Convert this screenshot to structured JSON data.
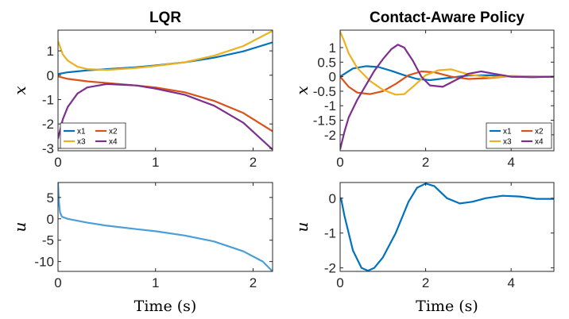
{
  "chart_data": [
    {
      "type": "line",
      "title": "LQR",
      "xlabel": "",
      "ylabel": "x",
      "xlim": [
        0,
        2.2
      ],
      "ylim": [
        -3.1,
        1.85
      ],
      "xticks": [
        0,
        1,
        2
      ],
      "yticks": [
        1,
        0,
        -1,
        -2,
        -3
      ],
      "grid": false,
      "legend": {
        "position": "bottom-left",
        "columns": 2
      },
      "series": [
        {
          "name": "x1",
          "color": "#0072BD",
          "x": [
            0,
            0.1,
            0.3,
            0.5,
            0.8,
            1.0,
            1.3,
            1.6,
            1.9,
            2.2
          ],
          "y": [
            0.05,
            0.12,
            0.2,
            0.25,
            0.33,
            0.4,
            0.53,
            0.72,
            0.98,
            1.35
          ]
        },
        {
          "name": "x2",
          "color": "#D95319",
          "x": [
            0,
            0.1,
            0.3,
            0.5,
            0.8,
            1.0,
            1.3,
            1.6,
            1.9,
            2.2
          ],
          "y": [
            -0.05,
            -0.15,
            -0.25,
            -0.32,
            -0.42,
            -0.5,
            -0.7,
            -1.05,
            -1.55,
            -2.3
          ]
        },
        {
          "name": "x3",
          "color": "#EDB120",
          "x": [
            0,
            0.05,
            0.1,
            0.2,
            0.3,
            0.5,
            0.8,
            1.0,
            1.3,
            1.6,
            1.9,
            2.2
          ],
          "y": [
            1.4,
            0.85,
            0.6,
            0.35,
            0.25,
            0.22,
            0.3,
            0.38,
            0.53,
            0.8,
            1.2,
            1.82
          ]
        },
        {
          "name": "x4",
          "color": "#7E2F8E",
          "x": [
            0,
            0.05,
            0.1,
            0.2,
            0.3,
            0.5,
            0.8,
            1.0,
            1.3,
            1.6,
            1.9,
            2.2
          ],
          "y": [
            -2.6,
            -1.8,
            -1.3,
            -0.75,
            -0.5,
            -0.36,
            -0.42,
            -0.55,
            -0.8,
            -1.25,
            -1.95,
            -3.05
          ]
        }
      ]
    },
    {
      "type": "line",
      "title": "Contact-Aware Policy",
      "xlabel": "",
      "ylabel": "x",
      "xlim": [
        0,
        5
      ],
      "ylim": [
        -2.55,
        1.6
      ],
      "xticks": [
        0,
        2,
        4
      ],
      "yticks": [
        1,
        0.5,
        0,
        -0.5,
        -1,
        -1.5,
        -2
      ],
      "ytick_labels": [
        "1",
        "0.5",
        "0",
        "-0.5",
        "-1",
        "-1.5",
        "-2"
      ],
      "grid": false,
      "legend": {
        "position": "bottom-right",
        "columns": 2
      },
      "series": [
        {
          "name": "x1",
          "color": "#0072BD",
          "x": [
            0,
            0.3,
            0.6,
            0.9,
            1.2,
            1.5,
            1.8,
            2.1,
            2.5,
            3.0,
            3.5,
            4.0,
            4.5,
            5.0
          ],
          "y": [
            0.0,
            0.28,
            0.36,
            0.33,
            0.2,
            0.05,
            -0.08,
            -0.12,
            -0.05,
            0.04,
            0.05,
            0.0,
            -0.01,
            0.0
          ]
        },
        {
          "name": "x2",
          "color": "#D95319",
          "x": [
            0,
            0.2,
            0.4,
            0.7,
            1.0,
            1.3,
            1.6,
            1.9,
            2.2,
            2.6,
            3.0,
            3.5,
            4.0,
            4.5,
            5.0
          ],
          "y": [
            0.0,
            -0.35,
            -0.55,
            -0.6,
            -0.5,
            -0.25,
            0.05,
            0.18,
            0.15,
            0.0,
            -0.08,
            -0.05,
            0.02,
            0.01,
            0.0
          ]
        },
        {
          "name": "x3",
          "color": "#EDB120",
          "x": [
            0,
            0.1,
            0.2,
            0.4,
            0.7,
            1.0,
            1.3,
            1.5,
            1.7,
            2.0,
            2.3,
            2.6,
            3.0,
            3.5,
            4.0,
            4.5,
            5.0
          ],
          "y": [
            1.55,
            1.2,
            0.8,
            0.3,
            -0.15,
            -0.45,
            -0.62,
            -0.6,
            -0.35,
            0.05,
            0.22,
            0.25,
            0.08,
            -0.03,
            0.02,
            0.0,
            0.0
          ]
        },
        {
          "name": "x4",
          "color": "#7E2F8E",
          "x": [
            0,
            0.1,
            0.2,
            0.4,
            0.6,
            0.8,
            1.0,
            1.2,
            1.35,
            1.5,
            1.7,
            1.9,
            2.1,
            2.4,
            2.7,
            3.0,
            3.3,
            3.6,
            4.0,
            4.5,
            5.0
          ],
          "y": [
            -2.5,
            -1.9,
            -1.4,
            -0.8,
            -0.3,
            0.2,
            0.6,
            0.95,
            1.1,
            1.0,
            0.55,
            0.0,
            -0.3,
            -0.35,
            -0.12,
            0.1,
            0.18,
            0.1,
            0.0,
            -0.02,
            0.0
          ]
        }
      ]
    },
    {
      "type": "line",
      "title": "",
      "xlabel": "Time (s)",
      "ylabel": "u",
      "xlim": [
        0,
        2.2
      ],
      "ylim": [
        -12.3,
        8.5
      ],
      "xticks": [
        0,
        1,
        2
      ],
      "yticks": [
        5,
        0,
        -5,
        -10
      ],
      "grid": false,
      "series": [
        {
          "color": "#4A9FD9",
          "x": [
            0,
            0.01,
            0.02,
            0.04,
            0.1,
            0.3,
            0.5,
            0.8,
            1.0,
            1.3,
            1.6,
            1.9,
            2.1,
            2.2
          ],
          "y": [
            8.5,
            4.0,
            1.5,
            0.5,
            0.0,
            -0.9,
            -1.6,
            -2.4,
            -2.9,
            -3.9,
            -5.3,
            -7.6,
            -10.0,
            -12.3
          ]
        }
      ]
    },
    {
      "type": "line",
      "title": "",
      "xlabel": "Time (s)",
      "ylabel": "u",
      "xlim": [
        0,
        5
      ],
      "ylim": [
        -2.1,
        0.45
      ],
      "xticks": [
        0,
        2,
        4
      ],
      "yticks": [
        0,
        -1,
        -2
      ],
      "grid": false,
      "series": [
        {
          "color": "#0072BD",
          "x": [
            0,
            0.02,
            0.1,
            0.3,
            0.5,
            0.65,
            0.8,
            1.0,
            1.3,
            1.6,
            1.8,
            2.0,
            2.2,
            2.5,
            2.8,
            3.1,
            3.4,
            3.8,
            4.2,
            4.6,
            5.0
          ],
          "y": [
            -0.05,
            0.0,
            -0.5,
            -1.5,
            -2.0,
            -2.08,
            -2.0,
            -1.7,
            -1.0,
            -0.1,
            0.3,
            0.42,
            0.35,
            0.0,
            -0.15,
            -0.1,
            0.0,
            0.07,
            0.05,
            -0.02,
            -0.02
          ]
        }
      ]
    }
  ]
}
